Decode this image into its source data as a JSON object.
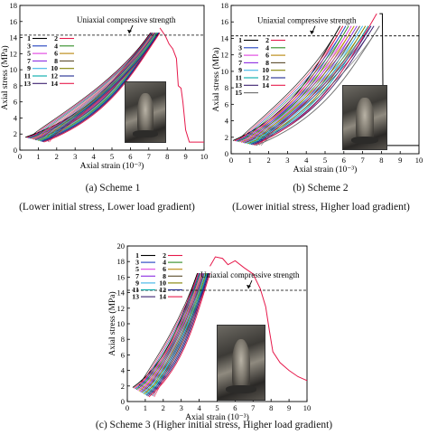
{
  "captions": {
    "a_line1": "(a) Scheme 1",
    "a_line2": "(Lower initial stress, Lower load gradient)",
    "b_line1": "(b) Scheme 2",
    "b_line2": "(Lower initial stress, Higher load gradient)",
    "c_line1": "(c) Scheme 3 (Higher initial stress, Higher load gradient)"
  },
  "series_colors": [
    "#000000",
    "#e6194b",
    "#1f3fbf",
    "#2e8b22",
    "#e040e0",
    "#b8860b",
    "#8a2be2",
    "#5a4a2a",
    "#3cb4e6",
    "#808000",
    "#00a8a8",
    "#1f2a8f",
    "#3a1f6f",
    "#e6194b",
    "#6b6b6b"
  ],
  "chart_data": [
    {
      "id": "a",
      "type": "line",
      "xlabel": "Axial strain (10⁻³)",
      "ylabel": "Axial stress (MPa)",
      "xlim": [
        0,
        10
      ],
      "ylim": [
        0,
        18
      ],
      "xticks": [
        0,
        1,
        2,
        3,
        4,
        5,
        6,
        7,
        8,
        9,
        10
      ],
      "yticks": [
        0,
        2,
        4,
        6,
        8,
        10,
        12,
        14,
        16,
        18
      ],
      "ucs": 14.3,
      "ucs_label": "Uniaxial compressive strength",
      "grid": false,
      "legend_placement": "upper-left",
      "legend": [
        "1",
        "2",
        "3",
        "4",
        "5",
        "6",
        "7",
        "8",
        "9",
        "10",
        "11",
        "12",
        "13",
        "14"
      ],
      "cycles": {
        "count": 14,
        "start_x": [
          0.3,
          1.3
        ],
        "start_y": [
          1.6,
          1.0
        ],
        "peak_x": [
          7.1,
          7.6
        ],
        "peak_y": 14.6
      },
      "failure_curve": {
        "x": [
          7.6,
          7.9,
          8.1,
          8.3,
          8.5,
          8.6,
          8.75,
          8.85,
          9.0,
          9.2,
          9.6,
          10.0
        ],
        "y": [
          15.2,
          14.2,
          13.2,
          12.6,
          11.4,
          8.0,
          7.7,
          6.0,
          2.5,
          1.0,
          1.0,
          1.0
        ]
      }
    },
    {
      "id": "b",
      "type": "line",
      "xlabel": "Axial strain (10⁻³)",
      "ylabel": "Axial stress (MPa)",
      "xlim": [
        0,
        10
      ],
      "ylim": [
        0,
        18
      ],
      "xticks": [
        0,
        1,
        2,
        3,
        4,
        5,
        6,
        7,
        8,
        9,
        10
      ],
      "yticks": [
        0,
        2,
        4,
        6,
        8,
        10,
        12,
        14,
        16,
        18
      ],
      "ucs": 14.3,
      "ucs_label": "Uniaxial compressive strength",
      "grid": false,
      "legend_placement": "upper-left",
      "legend": [
        "1",
        "2",
        "3",
        "4",
        "5",
        "6",
        "7",
        "8",
        "9",
        "10",
        "11",
        "12",
        "13",
        "14",
        "15"
      ],
      "cycles": {
        "count": 15,
        "start_x": [
          0.1,
          1.3
        ],
        "start_y": [
          1.6,
          1.0
        ],
        "peak_x": [
          5.8,
          7.9
        ],
        "peak_y": 15.5
      },
      "failure_curve": {
        "x": [
          7.9,
          8.05,
          8.1,
          8.3,
          10.0
        ],
        "y": [
          17.0,
          17.0,
          1.0,
          1.0,
          1.0
        ]
      }
    },
    {
      "id": "c",
      "type": "line",
      "xlabel": "Axial strain (10⁻³)",
      "ylabel": "Axial stress (MPa)",
      "xlim": [
        0,
        10
      ],
      "ylim": [
        0,
        20
      ],
      "xticks": [
        0,
        1,
        2,
        3,
        4,
        5,
        6,
        7,
        8,
        9,
        10
      ],
      "yticks": [
        0,
        2,
        4,
        6,
        8,
        10,
        12,
        14,
        16,
        18,
        20
      ],
      "ucs": 14.3,
      "ucs_label": "Uniaxial compressive strength",
      "grid": false,
      "legend_placement": "upper-left",
      "legend": [
        "1",
        "2",
        "3",
        "4",
        "5",
        "6",
        "7",
        "8",
        "9",
        "10",
        "11",
        "12",
        "13",
        "14"
      ],
      "cycles": {
        "count": 14,
        "start_x": [
          0.3,
          1.2
        ],
        "start_y": [
          1.8,
          0.6
        ],
        "peak_x": [
          3.9,
          4.6
        ],
        "peak_y": 16.5
      },
      "failure_curve": {
        "x": [
          4.6,
          4.9,
          5.3,
          5.6,
          6.0,
          6.5,
          7.0,
          7.4,
          7.7,
          7.9,
          8.1,
          8.5,
          9.0,
          9.5,
          10.0
        ],
        "y": [
          17.4,
          18.6,
          18.4,
          17.6,
          18.1,
          17.2,
          16.4,
          14.5,
          12.2,
          9.2,
          6.4,
          5.0,
          4.0,
          3.2,
          2.7
        ]
      }
    }
  ]
}
